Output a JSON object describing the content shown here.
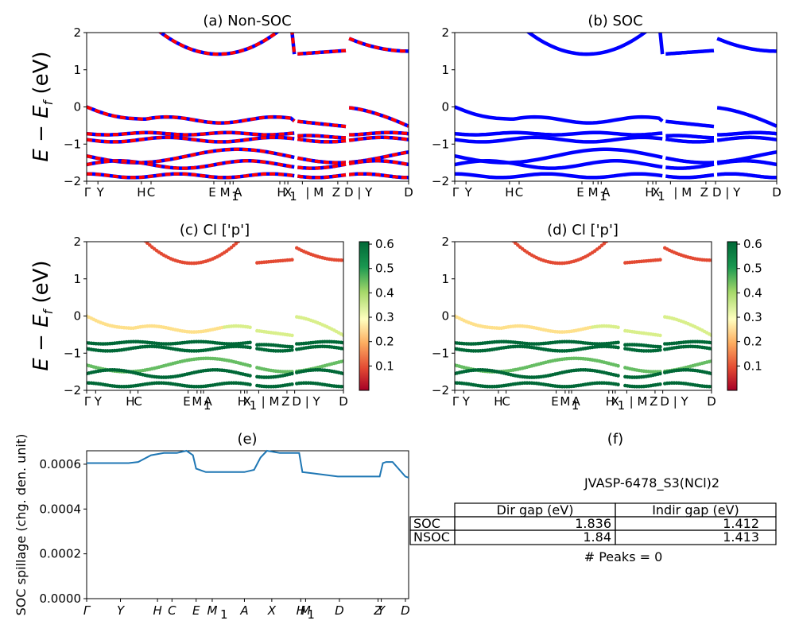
{
  "charts": {
    "a": {
      "title": "(a) Non-SOC",
      "ylabel": "E − E",
      "ylabel_sub": "f",
      "ylabel_unit": " (eV)"
    },
    "b": {
      "title": "(b) SOC"
    },
    "c": {
      "title": "(c)  Cl ['p']",
      "ylabel": "E − E",
      "ylabel_sub": "f",
      "ylabel_unit": " (eV)"
    },
    "d": {
      "title": "(d) Cl ['p']"
    },
    "e": {
      "title": "(e)",
      "ylabel": "SOC spillage (chg. den. unit)"
    },
    "f": {
      "title": "(f)"
    }
  },
  "band_xticks": [
    "Γ",
    "Y",
    "H",
    "C",
    "E",
    "M",
    "1",
    "A",
    "H",
    "1",
    "X",
    "| M",
    "Z",
    "D | Y",
    "D"
  ],
  "band_yticks": [
    "−2",
    "−1",
    "0",
    "1",
    "2"
  ],
  "colorbar_ticks": [
    "0.1",
    "0.2",
    "0.3",
    "0.4",
    "0.5",
    "0.6"
  ],
  "spillage_yticks": [
    "0.0000",
    "0.0002",
    "0.0004",
    "0.0006"
  ],
  "spillage_xticks": [
    "Γ",
    "Y",
    "H",
    "C",
    "E",
    "M",
    "1",
    "A",
    "X",
    "H",
    "1",
    "M",
    "D",
    "Z",
    "Y",
    "D"
  ],
  "info": {
    "material": "JVASP-6478_S3(NCl)2",
    "col1": "Dir gap (eV)",
    "col2": "Indir gap (eV)",
    "row1_label": "SOC",
    "row1_dir": "1.836",
    "row1_indir": "1.412",
    "row2_label": "NSOC",
    "row2_dir": "1.84",
    "row2_indir": "1.413",
    "peaks": "# Peaks = 0"
  },
  "colors": {
    "band_red": "#ff0000",
    "band_blue": "#0000ff",
    "spillage_line": "#1f77b4"
  },
  "chart_data": [
    {
      "type": "line",
      "title": "(a) Non-SOC",
      "ylim": [
        -2,
        2
      ],
      "ylabel": "E − E_f (eV)",
      "segments": 3,
      "bands_approx_energies_eV": [
        1.45,
        0.0,
        -0.35,
        -0.72,
        -0.9,
        -1.35,
        -1.55,
        -1.85
      ]
    },
    {
      "type": "line",
      "title": "(b) SOC",
      "ylim": [
        -2,
        2
      ],
      "segments": 3,
      "bands_approx_energies_eV": [
        1.45,
        0.0,
        -0.35,
        -0.72,
        -0.9,
        -1.35,
        -1.55,
        -1.85
      ]
    },
    {
      "type": "scatter",
      "title": "(c)  Cl ['p']",
      "ylim": [
        -2,
        2
      ],
      "colorbar_range": [
        0,
        0.6
      ],
      "colormap": "RdYlGn"
    },
    {
      "type": "scatter",
      "title": "(d) Cl ['p']",
      "ylim": [
        -2,
        2
      ],
      "colorbar_range": [
        0,
        0.6
      ],
      "colormap": "RdYlGn"
    },
    {
      "type": "line",
      "title": "(e)",
      "ylabel": "SOC spillage (chg. den. unit)",
      "ylim": [
        0,
        0.00066
      ],
      "x": [
        0,
        0.05,
        0.1,
        0.13,
        0.16,
        0.2,
        0.24,
        0.28,
        0.31,
        0.33,
        0.34,
        0.37,
        0.4,
        0.46,
        0.49,
        0.52,
        0.54,
        0.56,
        0.6,
        0.64,
        0.66,
        0.67,
        0.7,
        0.78,
        0.9,
        0.91,
        0.92,
        0.93,
        0.95,
        0.99,
        1.0
      ],
      "values": [
        0.000605,
        0.000605,
        0.000605,
        0.000605,
        0.00061,
        0.00064,
        0.00065,
        0.00065,
        0.00066,
        0.00064,
        0.00058,
        0.000565,
        0.000565,
        0.000565,
        0.000565,
        0.000575,
        0.00063,
        0.00066,
        0.00065,
        0.00065,
        0.00065,
        0.000565,
        0.00056,
        0.000545,
        0.000545,
        0.000545,
        0.000605,
        0.00061,
        0.00061,
        0.000545,
        0.00054
      ]
    }
  ]
}
